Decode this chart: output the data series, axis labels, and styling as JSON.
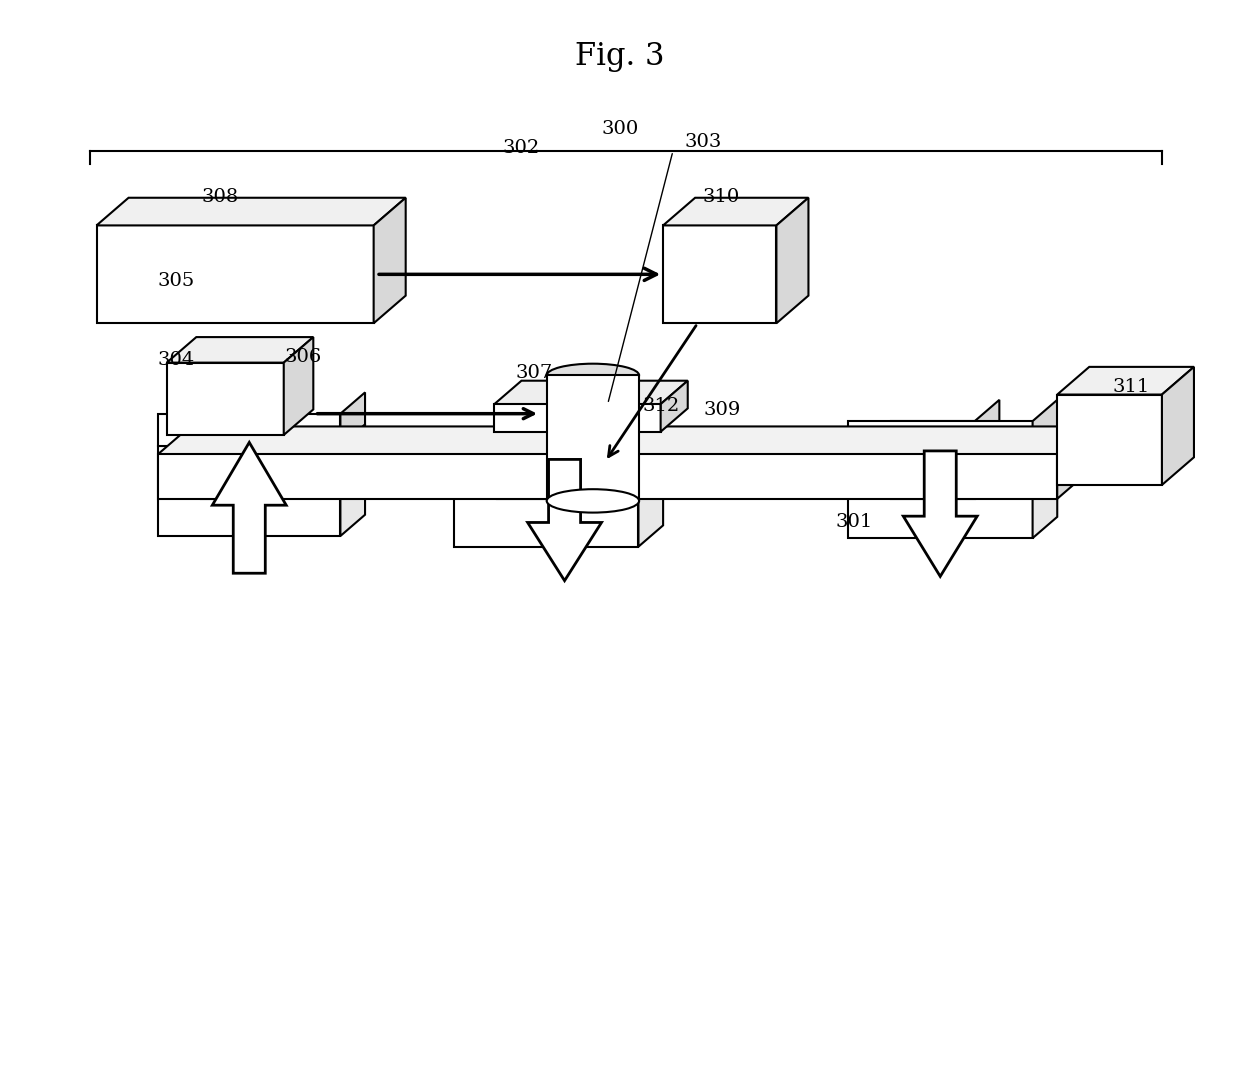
{
  "title": "Fig. 3",
  "bg_color": "#ffffff",
  "line_color": "#000000",
  "fig_width": 12.4,
  "fig_height": 10.72
}
